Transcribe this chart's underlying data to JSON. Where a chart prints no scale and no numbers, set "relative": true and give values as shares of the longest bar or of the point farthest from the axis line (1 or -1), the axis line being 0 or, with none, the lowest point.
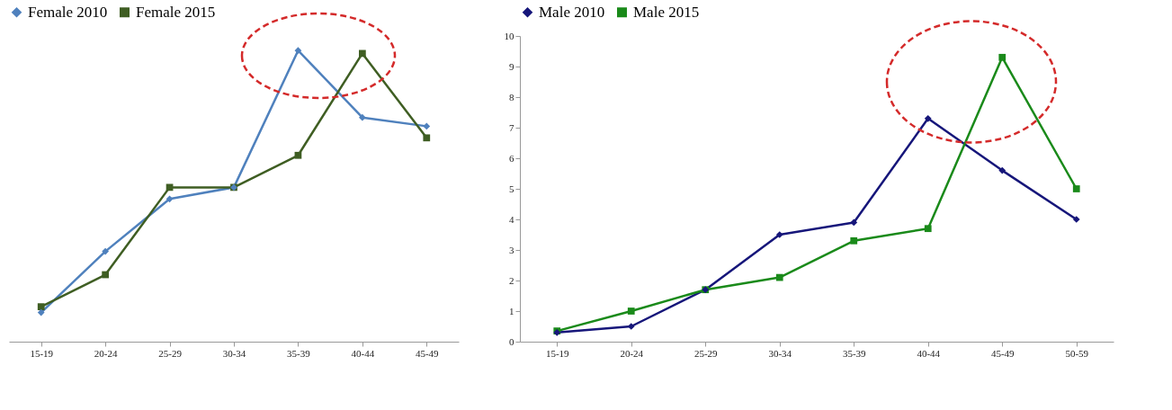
{
  "chart_data": [
    {
      "type": "line",
      "relative": true,
      "categories": [
        "15-19",
        "20-24",
        "25-29",
        "30-34",
        "35-39",
        "40-44",
        "45-49"
      ],
      "tick_labels": "x",
      "grid": false,
      "legend": "top",
      "line_style": "solid",
      "series": [
        {
          "name": "Female 2010",
          "color": "#4f81bd",
          "marker": "diamond",
          "values": [
            0.1,
            0.31,
            0.49,
            0.53,
            1.0,
            0.77,
            0.74
          ]
        },
        {
          "name": "Female 2015",
          "color": "#3f5e23",
          "marker": "square",
          "values": [
            0.12,
            0.23,
            0.53,
            0.53,
            0.64,
            0.99,
            0.7
          ]
        }
      ]
    },
    {
      "type": "line",
      "categories": [
        "15-19",
        "20-24",
        "25-29",
        "30-34",
        "35-39",
        "40-44",
        "45-49",
        "50-59"
      ],
      "ylim": [
        0,
        10
      ],
      "yticks": [
        0,
        1,
        2,
        3,
        4,
        5,
        6,
        7,
        8,
        9,
        10
      ],
      "grid": false,
      "legend": "top",
      "line_style": "solid",
      "series": [
        {
          "name": "Male 2010",
          "color": "#16167a",
          "marker": "diamond",
          "values": [
            0.3,
            0.5,
            1.7,
            3.5,
            3.9,
            7.3,
            5.6,
            4.0
          ]
        },
        {
          "name": "Male 2015",
          "color": "#1a8a1a",
          "marker": "square",
          "values": [
            0.35,
            1.0,
            1.7,
            2.1,
            3.3,
            3.7,
            9.3,
            5.0
          ]
        }
      ]
    }
  ]
}
